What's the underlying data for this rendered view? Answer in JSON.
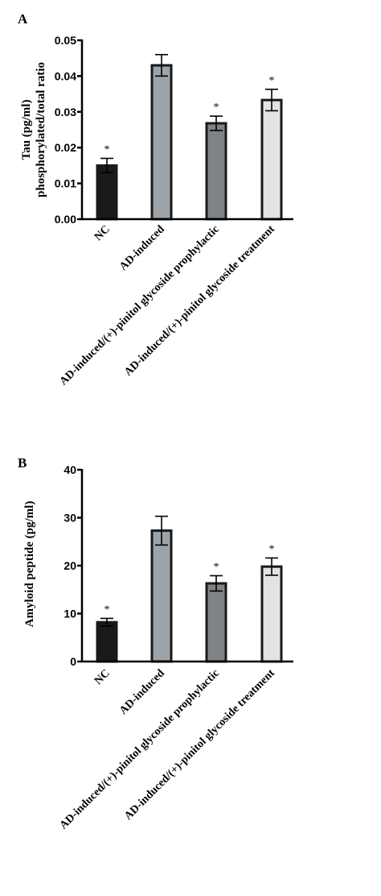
{
  "chart_data": [
    {
      "type": "bar",
      "panel_label": "A",
      "ylabel": "Tau (pg/ml) phosphorylated/total ratio",
      "ylabel_lines": [
        "Tau (pg/ml)",
        "phosphorylated/total ratio"
      ],
      "categories": [
        "NC",
        "AD-induced",
        "AD-induced/(+)-pinitol glycoside prophylactic",
        "AD-induced/(+)-pinitol glycoside treatment"
      ],
      "values": [
        0.015,
        0.043,
        0.0268,
        0.0333
      ],
      "errors": [
        0.002,
        0.003,
        0.002,
        0.003
      ],
      "significance": [
        "*",
        "",
        "*",
        "*"
      ],
      "bar_colors": [
        "#1a1a1a",
        "#9ca3a9",
        "#7f8385",
        "#e2e3e2"
      ],
      "ylim": [
        0,
        0.05
      ],
      "yticks": [
        0.0,
        0.01,
        0.02,
        0.03,
        0.04,
        0.05
      ],
      "ytick_labels": [
        "0.00",
        "0.01",
        "0.02",
        "0.03",
        "0.04",
        "0.05"
      ]
    },
    {
      "type": "bar",
      "panel_label": "B",
      "ylabel": "Amyloid peptide (pg/ml)",
      "ylabel_lines": [
        "Amyloid peptide (pg/ml)"
      ],
      "categories": [
        "NC",
        "AD-induced",
        "AD-induced/(+)-pinitol glycoside prophylactic",
        "AD-induced/(+)-pinitol glycoside treatment"
      ],
      "values": [
        8.2,
        27.3,
        16.3,
        19.8
      ],
      "errors": [
        0.8,
        3.0,
        1.6,
        1.8
      ],
      "significance": [
        "*",
        "",
        "*",
        "*"
      ],
      "bar_colors": [
        "#1a1a1a",
        "#9ca3a9",
        "#7f8385",
        "#e2e3e2"
      ],
      "ylim": [
        0,
        40
      ],
      "yticks": [
        0,
        10,
        20,
        30,
        40
      ],
      "ytick_labels": [
        "0",
        "10",
        "20",
        "30",
        "40"
      ]
    }
  ]
}
